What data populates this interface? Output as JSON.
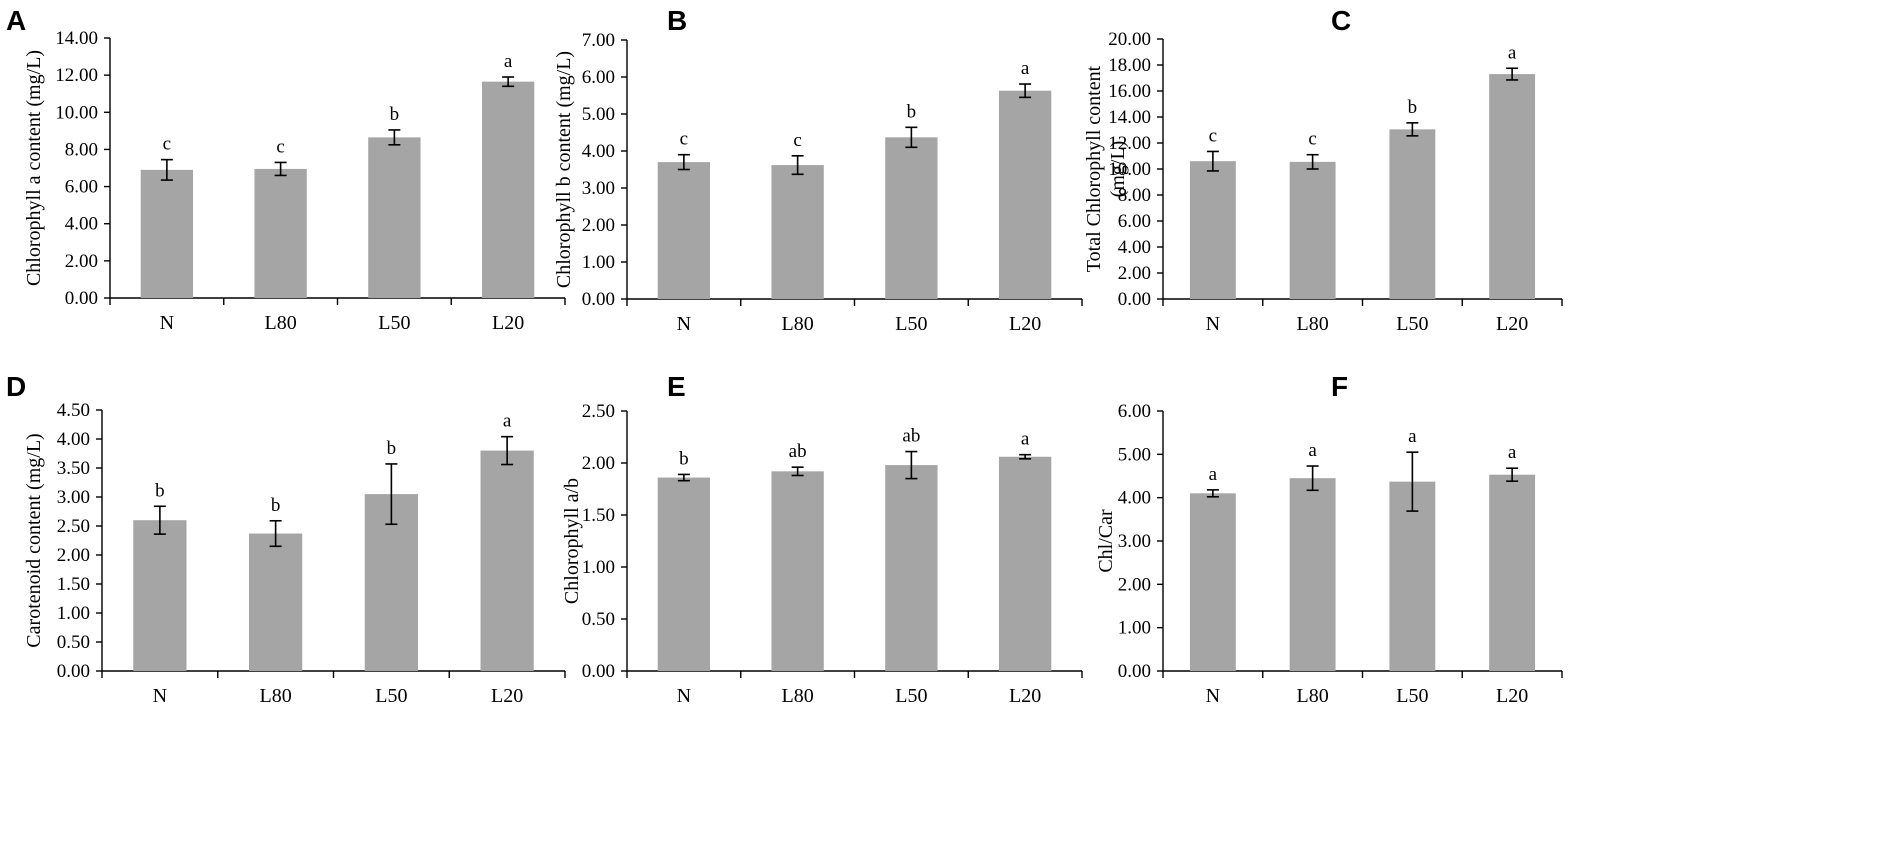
{
  "chart_data": [
    {
      "panel": "A",
      "type": "bar",
      "categories": [
        "N",
        "L80",
        "L50",
        "L20"
      ],
      "values": [
        6.9,
        6.95,
        8.65,
        11.65
      ],
      "errors": [
        0.55,
        0.35,
        0.4,
        0.25
      ],
      "significance": [
        "c",
        "c",
        "b",
        "a"
      ],
      "ylabel": [
        "Chlorophyll a content (mg/L)"
      ],
      "ylim": [
        0,
        14
      ],
      "yticks": [
        "0.00",
        "2.00",
        "4.00",
        "6.00",
        "8.00",
        "10.00",
        "12.00",
        "14.00"
      ]
    },
    {
      "panel": "B",
      "type": "bar",
      "categories": [
        "N",
        "L80",
        "L50",
        "L20"
      ],
      "values": [
        3.7,
        3.62,
        4.37,
        5.63
      ],
      "errors": [
        0.2,
        0.25,
        0.27,
        0.18
      ],
      "significance": [
        "c",
        "c",
        "b",
        "a"
      ],
      "ylabel": [
        "Chlorophyll b content (mg/L)"
      ],
      "ylim": [
        0,
        7
      ],
      "yticks": [
        "0.00",
        "1.00",
        "2.00",
        "3.00",
        "4.00",
        "5.00",
        "6.00",
        "7.00"
      ]
    },
    {
      "panel": "C",
      "type": "bar",
      "categories": [
        "N",
        "L80",
        "L50",
        "L20"
      ],
      "values": [
        10.6,
        10.55,
        13.05,
        17.3
      ],
      "errors": [
        0.75,
        0.55,
        0.5,
        0.45
      ],
      "significance": [
        "c",
        "c",
        "b",
        "a"
      ],
      "ylabel": [
        "Total Chlorophyll content",
        "(mg/L)"
      ],
      "ylim": [
        0,
        20
      ],
      "yticks": [
        "0.00",
        "2.00",
        "4.00",
        "6.00",
        "8.00",
        "10.00",
        "12.00",
        "14.00",
        "16.00",
        "18.00",
        "20.00"
      ]
    },
    {
      "panel": "D",
      "type": "bar",
      "categories": [
        "N",
        "L80",
        "L50",
        "L20"
      ],
      "values": [
        2.6,
        2.37,
        3.05,
        3.8
      ],
      "errors": [
        0.24,
        0.22,
        0.52,
        0.24
      ],
      "significance": [
        "b",
        "b",
        "b",
        "a"
      ],
      "ylabel": [
        "Carotenoid content (mg/L)"
      ],
      "ylim": [
        0,
        4.5
      ],
      "yticks": [
        "0.00",
        "0.50",
        "1.00",
        "1.50",
        "2.00",
        "2.50",
        "3.00",
        "3.50",
        "4.00",
        "4.50"
      ]
    },
    {
      "panel": "E",
      "type": "bar",
      "categories": [
        "N",
        "L80",
        "L50",
        "L20"
      ],
      "values": [
        1.86,
        1.92,
        1.98,
        2.06
      ],
      "errors": [
        0.03,
        0.04,
        0.13,
        0.02
      ],
      "significance": [
        "b",
        "ab",
        "ab",
        "a"
      ],
      "ylabel": [
        "Chlorophyll a/b"
      ],
      "ylim": [
        0,
        2.5
      ],
      "yticks": [
        "0.00",
        "0.50",
        "1.00",
        "1.50",
        "2.00",
        "2.50"
      ]
    },
    {
      "panel": "F",
      "type": "bar",
      "categories": [
        "N",
        "L80",
        "L50",
        "L20"
      ],
      "values": [
        4.1,
        4.45,
        4.37,
        4.53
      ],
      "errors": [
        0.08,
        0.28,
        0.68,
        0.15
      ],
      "significance": [
        "a",
        "a",
        "a",
        "a"
      ],
      "ylabel": [
        "Chl/Car"
      ],
      "ylim": [
        0,
        6
      ],
      "yticks": [
        "0.00",
        "1.00",
        "2.00",
        "3.00",
        "4.00",
        "5.00",
        "6.00"
      ]
    }
  ],
  "colors": {
    "bar": "#a5a5a5",
    "axis": "#000000"
  }
}
